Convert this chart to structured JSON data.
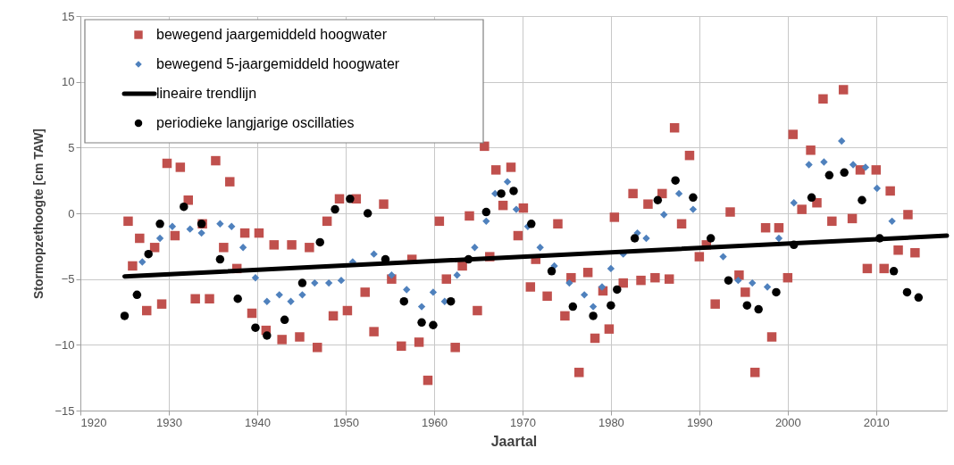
{
  "chart_data": {
    "type": "scatter",
    "xlabel": "Jaartal",
    "ylabel": "Stormopzethoogte [cm TAW]",
    "xlim": [
      1920,
      2018
    ],
    "xticks": [
      1920,
      1930,
      1940,
      1950,
      1960,
      1970,
      1980,
      1990,
      2000,
      2010
    ],
    "ylim": [
      -15,
      15
    ],
    "yticks": [
      -15,
      -10,
      -5,
      0,
      5,
      10,
      15
    ],
    "grid": true,
    "legend": "top left",
    "series": [
      {
        "name": "bewegend jaargemiddeld hoogwater",
        "marker": "square",
        "color": "#c0504d",
        "x": [
          1925.4,
          1925.9,
          1926.7,
          1927.5,
          1928.4,
          1929.2,
          1929.8,
          1930.7,
          1931.3,
          1932.2,
          1933.0,
          1933.8,
          1934.6,
          1935.3,
          1936.2,
          1936.9,
          1937.7,
          1938.6,
          1939.4,
          1940.2,
          1941.0,
          1941.9,
          1942.8,
          1943.9,
          1944.8,
          1945.9,
          1946.8,
          1947.9,
          1948.6,
          1949.3,
          1950.2,
          1951.2,
          1952.2,
          1953.2,
          1954.3,
          1955.2,
          1956.3,
          1957.5,
          1958.3,
          1959.3,
          1960.6,
          1961.4,
          1962.4,
          1963.2,
          1964.0,
          1964.9,
          1965.7,
          1966.3,
          1967.0,
          1967.8,
          1968.7,
          1969.5,
          1970.1,
          1970.9,
          1971.5,
          1972.8,
          1974.0,
          1974.8,
          1975.5,
          1976.4,
          1977.4,
          1978.2,
          1979.1,
          1979.8,
          1980.4,
          1981.4,
          1982.5,
          1983.4,
          1984.2,
          1985.0,
          1985.8,
          1986.6,
          1987.2,
          1988.0,
          1988.9,
          1990.0,
          1990.8,
          1991.8,
          1993.5,
          1994.5,
          1995.2,
          1996.3,
          1997.5,
          1998.2,
          1999.0,
          2000.0,
          2000.6,
          2001.6,
          2002.6,
          2003.3,
          2004.0,
          2005.0,
          2006.3,
          2007.3,
          2008.2,
          2009.0,
          2010.0,
          2010.9,
          2011.6,
          2012.5,
          2013.6,
          2014.4
        ],
        "values": [
          -0.6,
          -4.0,
          -1.9,
          -7.4,
          -2.6,
          -6.9,
          3.8,
          -1.7,
          3.5,
          1.0,
          -6.5,
          -0.8,
          -6.5,
          4.0,
          -2.6,
          2.4,
          -4.2,
          -1.5,
          -7.6,
          -1.5,
          -8.9,
          -2.4,
          -9.6,
          -2.4,
          -9.4,
          -2.6,
          -10.2,
          -0.6,
          -7.8,
          1.1,
          -7.4,
          1.1,
          -6.0,
          -9.0,
          0.7,
          -5.0,
          -10.1,
          -3.5,
          -9.8,
          -12.7,
          -0.6,
          -5.0,
          -10.2,
          -4.0,
          -0.2,
          -7.4,
          5.1,
          -3.3,
          3.3,
          0.6,
          3.5,
          -1.7,
          0.4,
          -5.6,
          -3.5,
          -6.3,
          -0.8,
          -7.8,
          -4.9,
          -12.1,
          -4.5,
          -9.5,
          -5.9,
          -8.8,
          -0.3,
          -5.3,
          1.5,
          -5.1,
          0.7,
          -4.9,
          1.5,
          -5.0,
          6.5,
          -0.8,
          4.4,
          -3.3,
          -2.4,
          -6.9,
          0.1,
          -4.7,
          -6.0,
          -12.1,
          -1.1,
          -9.4,
          -1.1,
          -4.9,
          6.0,
          0.3,
          4.8,
          0.8,
          8.7,
          -0.6,
          9.4,
          -0.4,
          3.3,
          -4.2,
          3.3,
          -4.2,
          1.7,
          -2.8,
          -0.1,
          -3.0
        ]
      },
      {
        "name": "bewegend 5-jaargemiddeld hoogwater",
        "marker": "diamond",
        "color": "#4f81bd",
        "x": [
          1927.0,
          1929.0,
          1930.4,
          1932.4,
          1933.7,
          1935.8,
          1937.1,
          1938.4,
          1939.8,
          1941.1,
          1942.5,
          1943.8,
          1945.1,
          1946.5,
          1948.1,
          1949.5,
          1950.8,
          1953.2,
          1955.2,
          1956.9,
          1958.6,
          1959.9,
          1961.2,
          1962.6,
          1964.6,
          1965.9,
          1966.9,
          1968.3,
          1969.3,
          1970.6,
          1972.0,
          1973.6,
          1975.3,
          1977.0,
          1978.0,
          1979.0,
          1980.0,
          1981.4,
          1983.0,
          1984.0,
          1986.0,
          1987.7,
          1989.3,
          1992.7,
          1994.4,
          1996.0,
          1997.7,
          1999.0,
          2000.7,
          2002.4,
          2004.1,
          2006.1,
          2007.4,
          2008.8,
          2010.1,
          2011.8
        ],
        "values": [
          -3.7,
          -1.9,
          -1.0,
          -1.2,
          -1.5,
          -0.8,
          -1.0,
          -2.6,
          -4.9,
          -6.7,
          -6.2,
          -6.7,
          -6.2,
          -5.3,
          -5.3,
          -5.1,
          -3.7,
          -3.1,
          -4.7,
          -5.8,
          -7.1,
          -6.0,
          -6.7,
          -4.7,
          -2.6,
          -0.6,
          1.5,
          2.4,
          0.3,
          -1.0,
          -2.6,
          -4.0,
          -5.3,
          -6.2,
          -7.1,
          -5.6,
          -4.2,
          -3.1,
          -1.5,
          -1.9,
          -0.1,
          1.5,
          0.3,
          -3.3,
          -5.1,
          -5.3,
          -5.6,
          -1.9,
          0.8,
          3.7,
          3.9,
          5.5,
          3.7,
          3.5,
          1.9,
          -0.6
        ]
      },
      {
        "name": "lineaire trendlijn",
        "type": "line",
        "line_style": "solid",
        "color": "#000000",
        "x": [
          1925,
          2018
        ],
        "values": [
          -4.8,
          -1.7
        ]
      },
      {
        "name": "periodieke langjarige oscillaties",
        "marker": "circle",
        "color": "#000000",
        "x": [
          1925.0,
          1926.4,
          1927.7,
          1929.0,
          1931.7,
          1933.7,
          1935.8,
          1937.8,
          1939.8,
          1941.1,
          1943.1,
          1945.1,
          1947.1,
          1948.8,
          1950.5,
          1952.5,
          1954.5,
          1956.6,
          1958.6,
          1959.9,
          1961.9,
          1963.9,
          1965.9,
          1967.6,
          1969.0,
          1971.0,
          1973.3,
          1975.7,
          1978.0,
          1980.0,
          1980.7,
          1982.7,
          1985.3,
          1987.3,
          1989.3,
          1991.3,
          1993.3,
          1995.4,
          1996.7,
          1998.7,
          2000.7,
          2002.7,
          2004.7,
          2006.4,
          2008.4,
          2010.4,
          2012.0,
          2013.5,
          2014.8
        ],
        "values": [
          -7.8,
          -6.2,
          -3.1,
          -0.8,
          0.5,
          -0.8,
          -3.5,
          -6.5,
          -8.7,
          -9.3,
          -8.1,
          -5.3,
          -2.2,
          0.3,
          1.1,
          0.0,
          -3.5,
          -6.7,
          -8.3,
          -8.5,
          -6.7,
          -3.5,
          0.1,
          1.5,
          1.7,
          -0.8,
          -4.4,
          -7.1,
          -7.8,
          -7.0,
          -5.8,
          -1.9,
          1.0,
          2.5,
          1.2,
          -1.9,
          -5.1,
          -7.0,
          -7.3,
          -6.0,
          -2.4,
          1.2,
          2.9,
          3.1,
          1.0,
          -1.9,
          -4.4,
          -6.0,
          -6.4
        ]
      }
    ]
  }
}
